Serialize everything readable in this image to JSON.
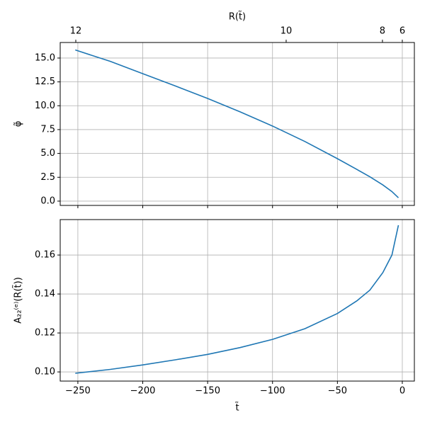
{
  "chart_data": [
    {
      "type": "line",
      "ylabel": "φ̃",
      "x2label": "R(t̃)",
      "x": [
        -252,
        -225,
        -200,
        -175,
        -150,
        -125,
        -100,
        -75,
        -50,
        -35,
        -25,
        -15,
        -8,
        -3
      ],
      "series": [
        {
          "color": "#1f77b4",
          "values": [
            15.85,
            14.65,
            13.36,
            12.08,
            10.76,
            9.36,
            7.87,
            6.25,
            4.45,
            3.32,
            2.55,
            1.7,
            1.0,
            0.35
          ]
        }
      ],
      "ylim": [
        -0.45,
        16.63
      ],
      "yticks": [
        {
          "value": 0,
          "label": "0.0"
        },
        2.5,
        {
          "value": 5,
          "label": "5.0"
        },
        7.5,
        {
          "value": 10,
          "label": "10.0"
        },
        12.5,
        {
          "value": 15,
          "label": "15.0"
        }
      ],
      "x2ticks": [
        {
          "value": -251.6,
          "label": "12"
        },
        {
          "value": -89.5,
          "label": "10"
        },
        {
          "value": -15.3,
          "label": "8"
        },
        {
          "value": 0,
          "label": "6"
        }
      ],
      "grid": true
    },
    {
      "type": "line",
      "xlabel": "t̃",
      "ylabel": "A₂₂⁽ᵉ⁾(R(t̃))",
      "x": [
        -252,
        -225,
        -200,
        -175,
        -150,
        -125,
        -100,
        -75,
        -50,
        -35,
        -25,
        -15,
        -8,
        -3
      ],
      "series": [
        {
          "color": "#1f77b4",
          "values": [
            0.0993,
            0.1013,
            0.1036,
            0.1062,
            0.109,
            0.1125,
            0.1167,
            0.1222,
            0.13,
            0.1365,
            0.142,
            0.151,
            0.16,
            0.1753
          ]
        }
      ],
      "xlim": [
        -263.6,
        9.3
      ],
      "xticks": [
        {
          "value": -250,
          "label": "−250"
        },
        {
          "value": -200,
          "label": "−200"
        },
        {
          "value": -150,
          "label": "−150"
        },
        {
          "value": -100,
          "label": "−100"
        },
        {
          "value": -50,
          "label": "−50"
        },
        0
      ],
      "ylim": [
        0.0953,
        0.1782
      ],
      "yticks": [
        {
          "value": 0.1,
          "label": "0.10"
        },
        0.12,
        0.14,
        0.16
      ],
      "grid": true
    }
  ]
}
